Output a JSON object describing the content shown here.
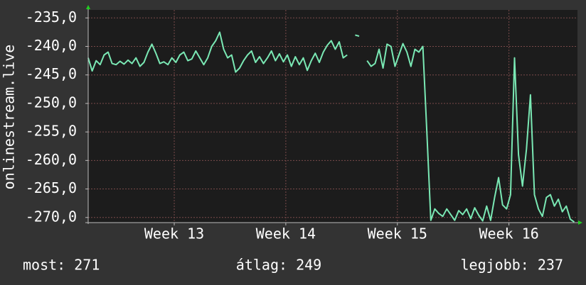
{
  "chart_data": {
    "type": "line",
    "y_label": "onlinestream.live",
    "color": "#7ae8b4",
    "x": [
      0,
      0.25,
      0.5,
      0.75,
      1,
      1.25,
      1.5,
      1.75,
      2,
      2.25,
      2.5,
      2.75,
      3,
      3.25,
      3.5,
      3.75,
      4,
      4.25,
      4.5,
      4.75,
      5,
      5.25,
      5.5,
      5.75,
      6,
      6.25,
      6.5,
      6.75,
      7,
      7.25,
      7.5,
      7.75,
      8,
      8.25,
      8.5,
      8.75,
      9,
      9.25,
      9.5,
      9.75,
      10,
      10.25,
      10.5,
      10.75,
      11,
      11.25,
      11.5,
      11.75,
      12,
      12.25,
      12.5,
      12.75,
      13,
      13.25,
      13.5,
      13.75,
      14,
      14.25,
      14.5,
      14.75,
      15,
      15.25,
      15.5,
      15.75,
      16,
      16.25,
      16.5,
      16.75,
      17,
      17.25,
      17.5,
      17.75,
      18,
      18.25,
      18.5,
      18.75,
      19,
      19.25,
      19.5,
      19.75,
      20,
      20.25,
      20.5,
      20.75,
      21,
      21.25,
      21.5,
      21.75,
      22,
      22.25,
      22.5,
      22.75,
      23,
      23.25,
      23.5,
      23.75,
      24,
      24.25,
      24.5,
      24.75,
      25,
      25.25,
      25.5,
      25.75,
      26,
      26.25,
      26.5,
      26.75,
      27,
      27.25,
      27.5,
      27.75,
      28,
      28.25,
      28.5,
      28.75,
      29,
      29.25,
      29.5,
      29.75,
      30,
      30.25,
      30.5
    ],
    "values": [
      -242.0,
      -244.3,
      -242.5,
      -243.2,
      -241.5,
      -241.0,
      -243.0,
      -243.2,
      -242.6,
      -243.1,
      -242.4,
      -243.0,
      -242.0,
      -243.5,
      -242.8,
      -241.0,
      -239.6,
      -241.2,
      -243.0,
      -242.7,
      -243.2,
      -242.0,
      -242.8,
      -241.5,
      -241.0,
      -242.5,
      -242.2,
      -240.8,
      -242.0,
      -243.2,
      -242.0,
      -240.0,
      -239.0,
      -237.5,
      -240.5,
      -242.0,
      -241.5,
      -244.5,
      -243.8,
      -242.5,
      -241.5,
      -240.8,
      -242.8,
      -241.8,
      -243.0,
      -242.0,
      -240.8,
      -242.5,
      -241.3,
      -242.7,
      -241.5,
      -243.5,
      -241.8,
      -243.2,
      -242.0,
      -244.2,
      -242.5,
      -241.2,
      -242.8,
      -241.0,
      -239.8,
      -239.0,
      -240.5,
      -239.2,
      -242.0,
      -241.5,
      null,
      -238.0,
      -238.2,
      null,
      -242.5,
      -243.5,
      -243.0,
      -240.5,
      -243.8,
      -239.6,
      -240.0,
      -243.5,
      -241.5,
      -239.5,
      -241.0,
      -243.5,
      -240.5,
      -241.0,
      -240.0,
      -255.0,
      -270.5,
      -268.5,
      -269.3,
      -269.8,
      -268.5,
      -269.5,
      -270.5,
      -268.8,
      -269.5,
      -268.5,
      -270.2,
      -268.3,
      -269.6,
      -270.6,
      -268.0,
      -270.5,
      -266.5,
      -263.0,
      -267.8,
      -268.5,
      -266.0,
      -242.0,
      -259.0,
      -264.5,
      -258.0,
      -248.5,
      -266.0,
      -268.5,
      -269.8,
      -266.5,
      -266.0,
      -268.0,
      -266.8,
      -269.0,
      -268.0,
      -270.3,
      -270.8
    ],
    "xlim": [
      0,
      30.7
    ],
    "xticks": [
      {
        "value": 5.4,
        "label": "Week 13"
      },
      {
        "value": 12.4,
        "label": "Week 14"
      },
      {
        "value": 19.4,
        "label": "Week 15"
      },
      {
        "value": 26.4,
        "label": "Week 16"
      }
    ],
    "ylim": [
      -270.9,
      -233.6
    ],
    "yticks": [
      {
        "value": -270,
        "label": "-270,0"
      },
      {
        "value": -265,
        "label": "-265,0"
      },
      {
        "value": -260,
        "label": "-260,0"
      },
      {
        "value": -255,
        "label": "-255,0"
      },
      {
        "value": -250,
        "label": "-250,0"
      },
      {
        "value": -245,
        "label": "-245,0"
      },
      {
        "value": -240,
        "label": "-240,0"
      },
      {
        "value": -235,
        "label": "-235,0"
      }
    ],
    "grid": true,
    "footer": [
      "most: 271",
      "átlag: 249",
      "legjobb: 237"
    ]
  }
}
